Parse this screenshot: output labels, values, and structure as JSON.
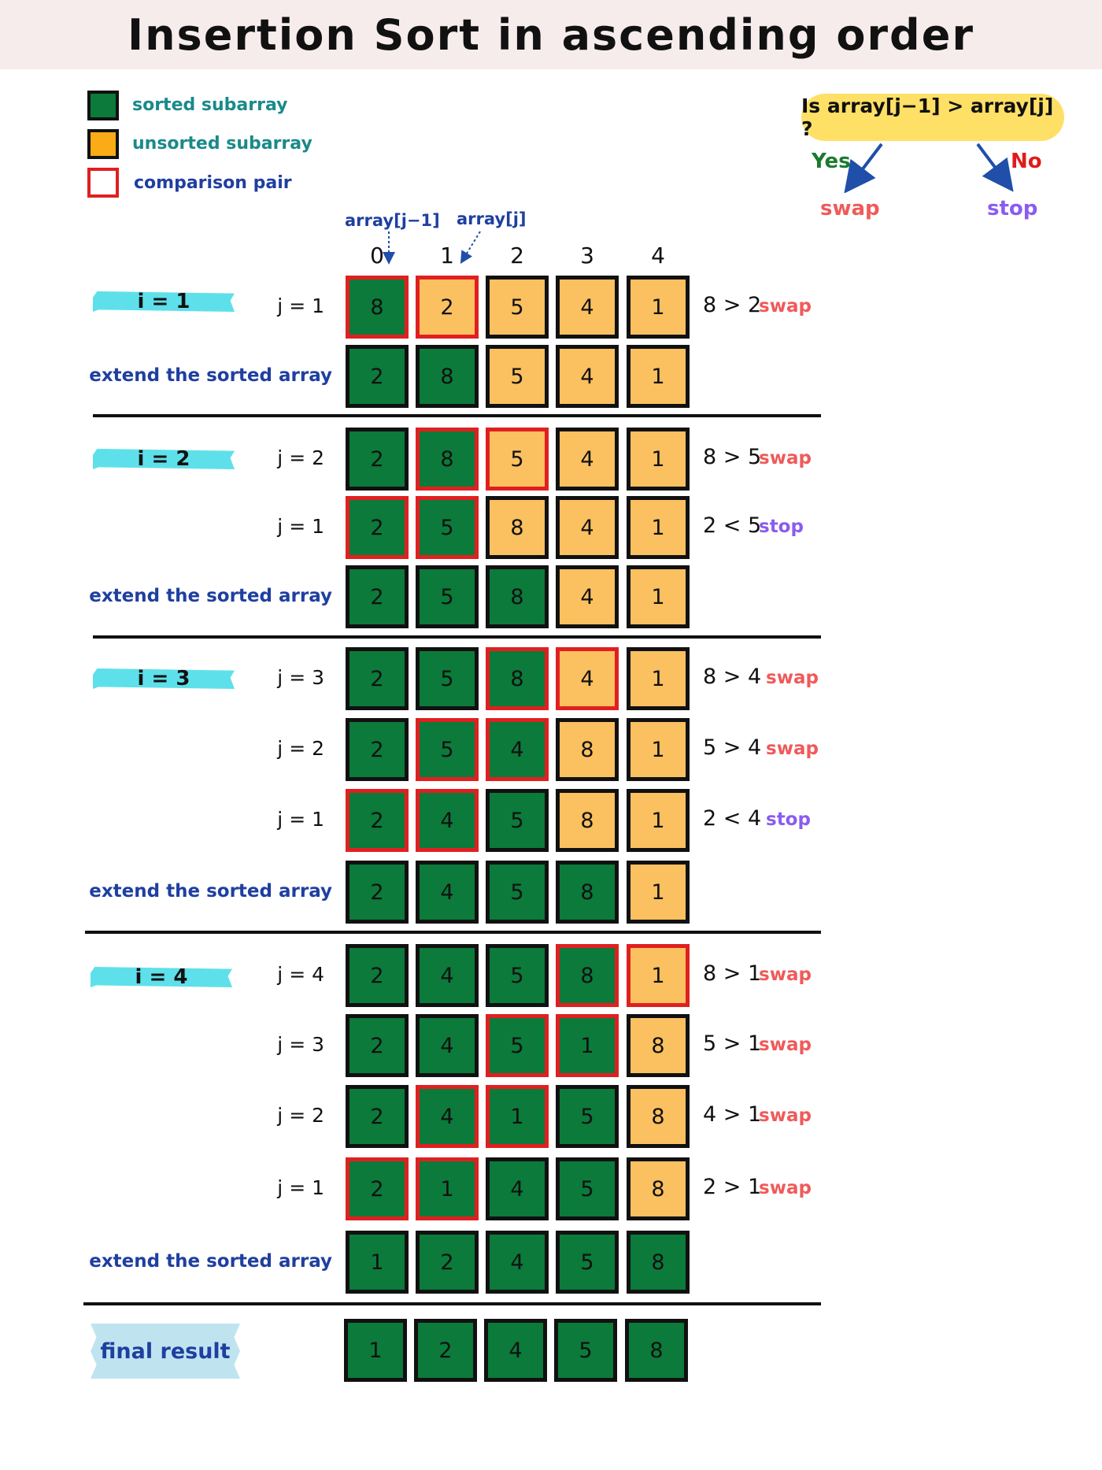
{
  "title": "Insertion Sort in ascending order",
  "colors": {
    "sorted": "#0b7a3a",
    "unsorted": "#fbc060",
    "comparison": "#e02020"
  },
  "legend": [
    {
      "label": "sorted subarray",
      "kind": "sorted"
    },
    {
      "label": "unsorted subarray",
      "kind": "unsorted"
    },
    {
      "label": "comparison pair",
      "kind": "comparison"
    }
  ],
  "decision": {
    "question": "Is array[j−1] > array[j] ?",
    "yes_label": "Yes",
    "no_label": "No",
    "yes_action": "swap",
    "no_action": "stop"
  },
  "pointers": {
    "prev": "array[j−1]",
    "curr": "array[j]"
  },
  "indices": [
    "0",
    "1",
    "2",
    "3",
    "4"
  ],
  "passes": [
    {
      "label": "i = 1",
      "steps": [
        {
          "j": "j = 1",
          "values": [
            "8",
            "2",
            "5",
            "4",
            "1"
          ],
          "sorted": [
            true,
            false,
            false,
            false,
            false
          ],
          "cmp": [
            0,
            1
          ],
          "compare": "8 > 2",
          "action": "swap"
        },
        {
          "extend": "extend the sorted array",
          "values": [
            "2",
            "8",
            "5",
            "4",
            "1"
          ],
          "sorted": [
            true,
            true,
            false,
            false,
            false
          ],
          "cmp": []
        }
      ]
    },
    {
      "label": "i = 2",
      "steps": [
        {
          "j": "j = 2",
          "values": [
            "2",
            "8",
            "5",
            "4",
            "1"
          ],
          "sorted": [
            true,
            true,
            false,
            false,
            false
          ],
          "cmp": [
            1,
            2
          ],
          "compare": "8 > 5",
          "action": "swap"
        },
        {
          "j": "j = 1",
          "values": [
            "2",
            "5",
            "8",
            "4",
            "1"
          ],
          "sorted": [
            true,
            true,
            false,
            false,
            false
          ],
          "cmp": [
            0,
            1
          ],
          "compare": "2 < 5",
          "action": "stop"
        },
        {
          "extend": "extend the sorted array",
          "values": [
            "2",
            "5",
            "8",
            "4",
            "1"
          ],
          "sorted": [
            true,
            true,
            true,
            false,
            false
          ],
          "cmp": []
        }
      ]
    },
    {
      "label": "i = 3",
      "steps": [
        {
          "j": "j = 3",
          "values": [
            "2",
            "5",
            "8",
            "4",
            "1"
          ],
          "sorted": [
            true,
            true,
            true,
            false,
            false
          ],
          "cmp": [
            2,
            3
          ],
          "compare": "8 > 4",
          "action": "swap"
        },
        {
          "j": "j = 2",
          "values": [
            "2",
            "5",
            "4",
            "8",
            "1"
          ],
          "sorted": [
            true,
            true,
            true,
            false,
            false
          ],
          "cmp": [
            1,
            2
          ],
          "compare": "5 > 4",
          "action": "swap"
        },
        {
          "j": "j = 1",
          "values": [
            "2",
            "4",
            "5",
            "8",
            "1"
          ],
          "sorted": [
            true,
            true,
            true,
            false,
            false
          ],
          "cmp": [
            0,
            1
          ],
          "compare": "2 < 4",
          "action": "stop"
        },
        {
          "extend": "extend the sorted array",
          "values": [
            "2",
            "4",
            "5",
            "8",
            "1"
          ],
          "sorted": [
            true,
            true,
            true,
            true,
            false
          ],
          "cmp": []
        }
      ]
    },
    {
      "label": "i = 4",
      "steps": [
        {
          "j": "j = 4",
          "values": [
            "2",
            "4",
            "5",
            "8",
            "1"
          ],
          "sorted": [
            true,
            true,
            true,
            true,
            false
          ],
          "cmp": [
            3,
            4
          ],
          "compare": "8 > 1",
          "action": "swap"
        },
        {
          "j": "j = 3",
          "values": [
            "2",
            "4",
            "5",
            "1",
            "8"
          ],
          "sorted": [
            true,
            true,
            true,
            true,
            false
          ],
          "cmp": [
            2,
            3
          ],
          "compare": "5 > 1",
          "action": "swap"
        },
        {
          "j": "j = 2",
          "values": [
            "2",
            "4",
            "1",
            "5",
            "8"
          ],
          "sorted": [
            true,
            true,
            true,
            true,
            false
          ],
          "cmp": [
            1,
            2
          ],
          "compare": "4 > 1",
          "action": "swap"
        },
        {
          "j": "j = 1",
          "values": [
            "2",
            "1",
            "4",
            "5",
            "8"
          ],
          "sorted": [
            true,
            true,
            true,
            true,
            false
          ],
          "cmp": [
            0,
            1
          ],
          "compare": "2 > 1",
          "action": "swap"
        },
        {
          "extend": "extend the sorted array",
          "values": [
            "1",
            "2",
            "4",
            "5",
            "8"
          ],
          "sorted": [
            true,
            true,
            true,
            true,
            true
          ],
          "cmp": []
        }
      ]
    }
  ],
  "final": {
    "label": "final result",
    "values": [
      "1",
      "2",
      "4",
      "5",
      "8"
    ]
  }
}
